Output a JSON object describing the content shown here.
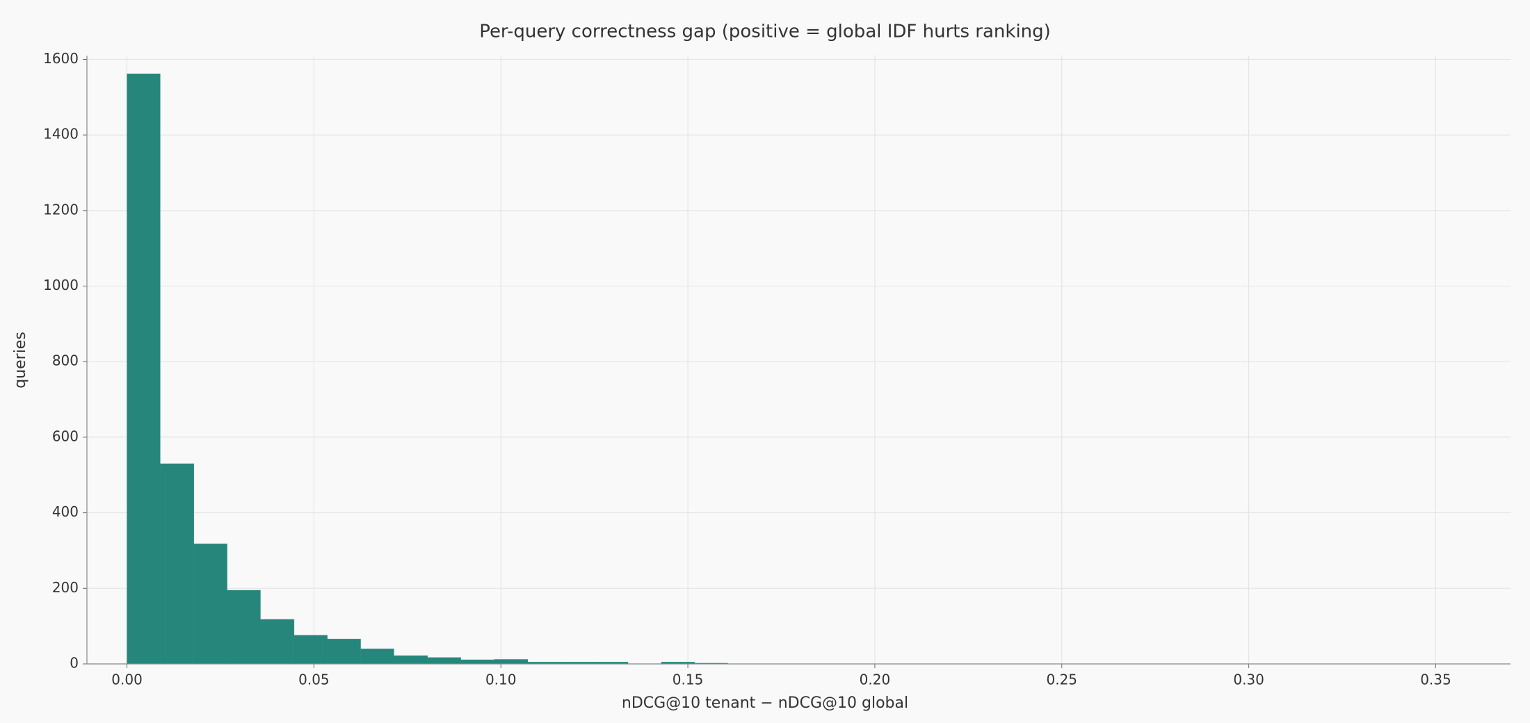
{
  "chart_data": {
    "type": "histogram",
    "title": "Per-query correctness gap (positive = global IDF hurts ranking)",
    "x_label": "nDCG@10 tenant − nDCG@10 global",
    "y_label": "queries",
    "bins": [
      0,
      0.0089,
      0.0179,
      0.0268,
      0.0357,
      0.0447,
      0.0536,
      0.0625,
      0.0714,
      0.0804,
      0.0893,
      0.0982,
      0.1072,
      0.1161,
      0.125,
      0.134,
      0.1429,
      0.1518,
      0.1607,
      0.1697,
      0.1786,
      0.1875,
      0.1965,
      0.2054,
      0.2143,
      0.2233,
      0.2322,
      0.2411,
      0.25,
      0.259,
      0.2679,
      0.2768,
      0.2858,
      0.2947,
      0.3036,
      0.3126,
      0.3215,
      0.3304,
      0.3393,
      0.3483,
      0.3572
    ],
    "values": [
      1562,
      530,
      318,
      195,
      118,
      76,
      66,
      40,
      22,
      17,
      11,
      12,
      5,
      5,
      5,
      0,
      5,
      2,
      0,
      0,
      0,
      0,
      0,
      0,
      0,
      0,
      0,
      0,
      0,
      0,
      0,
      0,
      0,
      0,
      0,
      0,
      0,
      0,
      0,
      0
    ],
    "color": "#26867c",
    "xlim": [
      -0.0107,
      0.37
    ],
    "ylim": [
      0,
      1610
    ],
    "xticks": [
      {
        "value": 0,
        "label": "0.00"
      },
      {
        "value": 0.05,
        "label": "0.05"
      },
      {
        "value": 0.1,
        "label": "0.10"
      },
      {
        "value": 0.15,
        "label": "0.15"
      },
      {
        "value": 0.2,
        "label": "0.20"
      },
      {
        "value": 0.25,
        "label": "0.25"
      },
      {
        "value": 0.3,
        "label": "0.30"
      },
      {
        "value": 0.35,
        "label": "0.35"
      }
    ],
    "yticks": [
      0,
      200,
      400,
      600,
      800,
      1000,
      1200,
      1400,
      1600
    ],
    "grid": true
  }
}
